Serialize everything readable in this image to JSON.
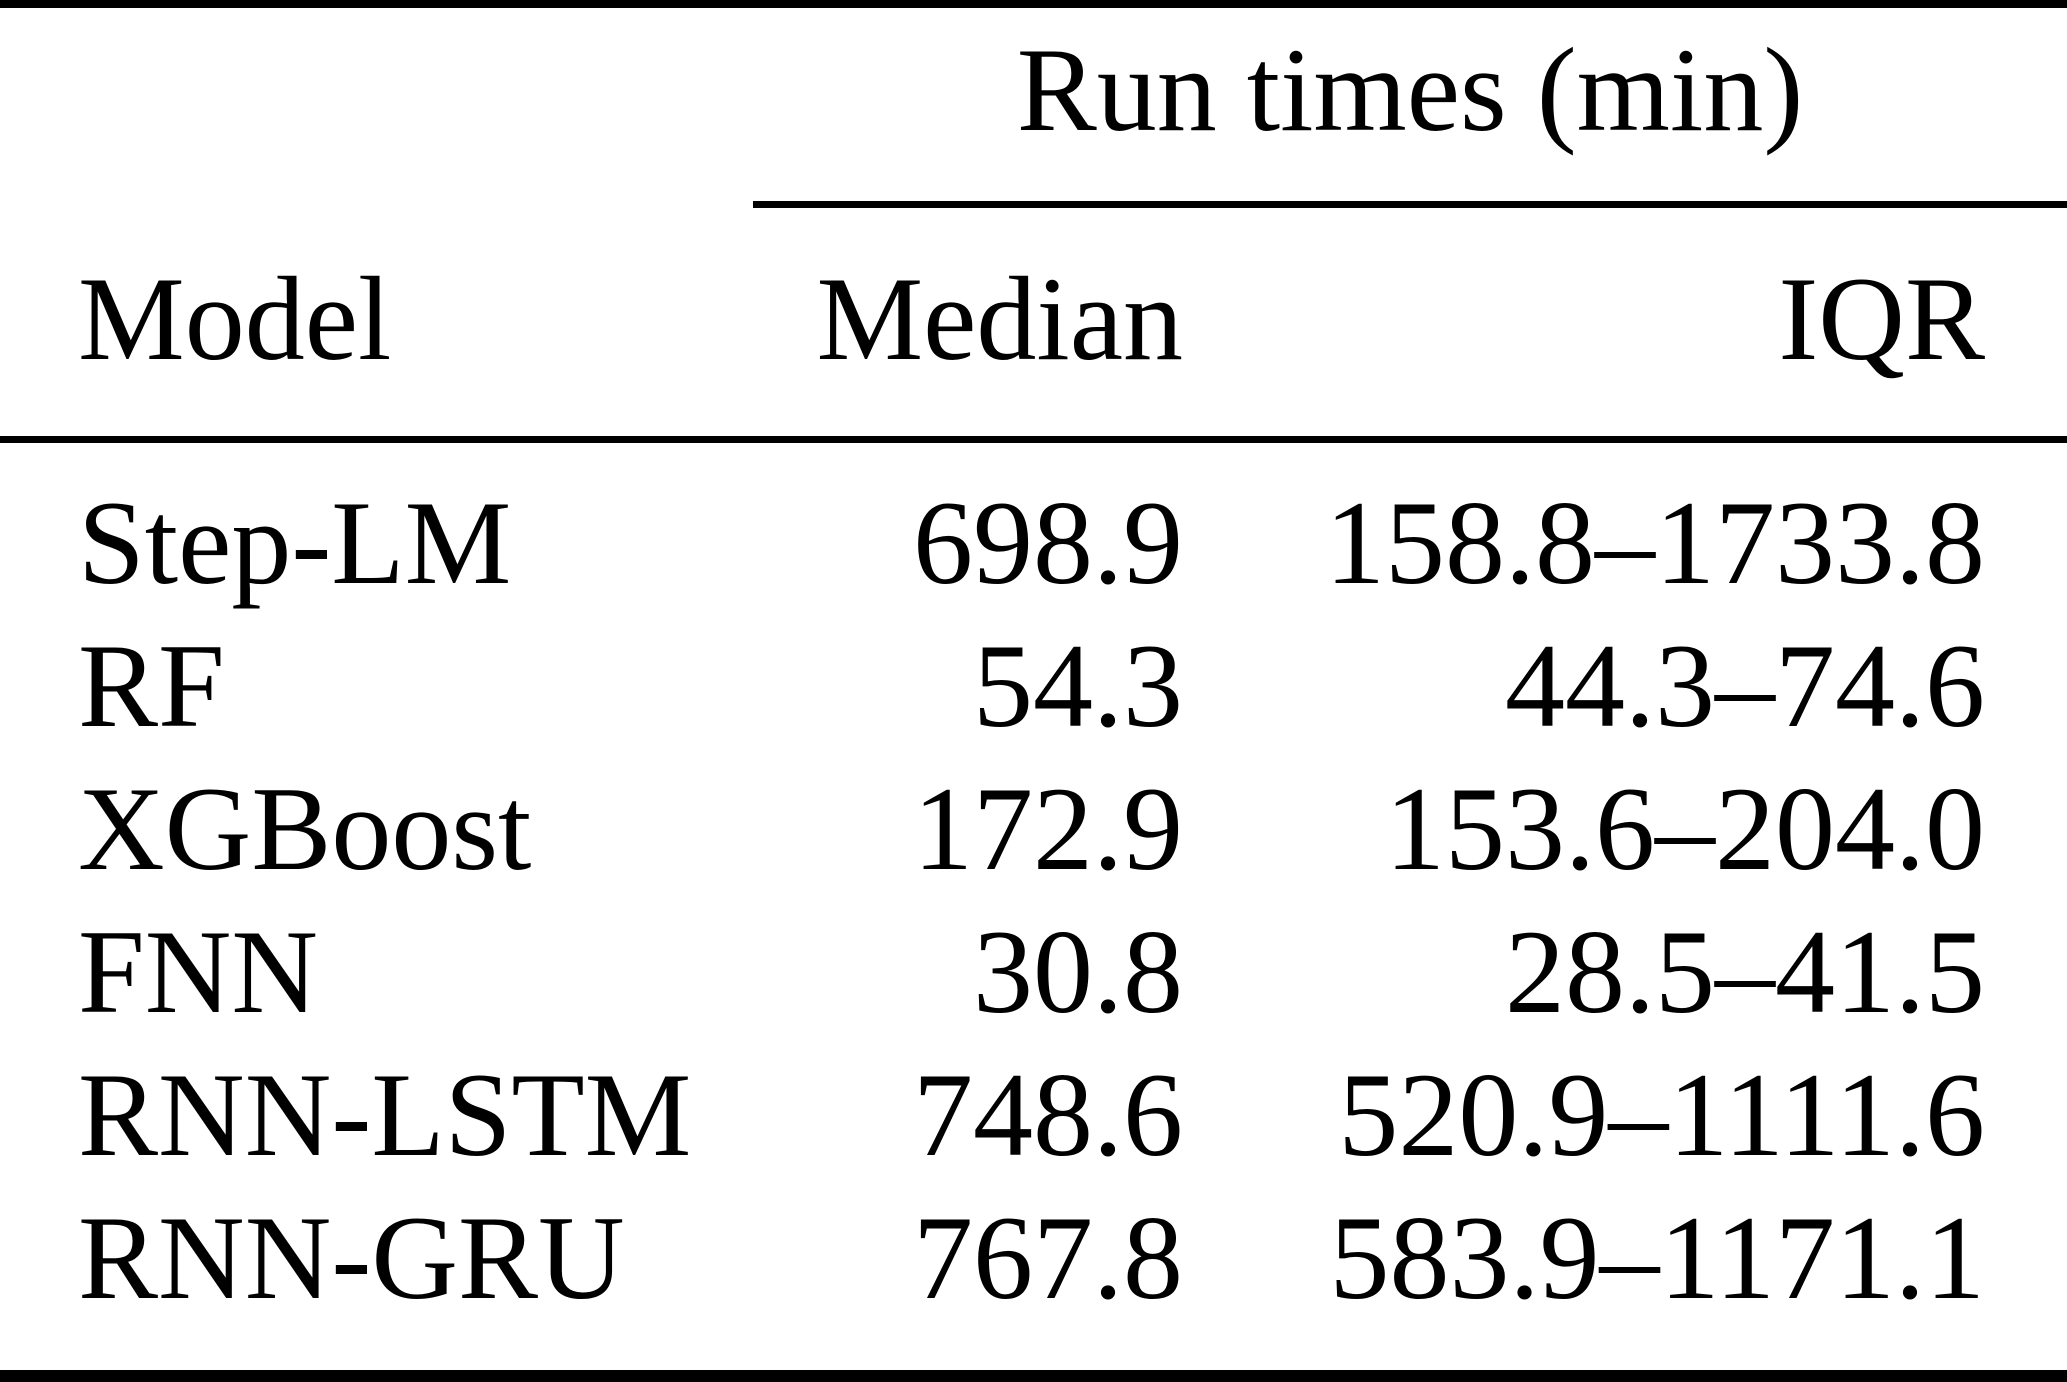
{
  "table": {
    "group_header": "Run times (min)",
    "columns": {
      "model": "Model",
      "median": "Median",
      "iqr": "IQR"
    },
    "rows": [
      {
        "model": "Step-LM",
        "median": "698.9",
        "iqr": "158.8–1733.8"
      },
      {
        "model": "RF",
        "median": "54.3",
        "iqr": "44.3–74.6"
      },
      {
        "model": "XGBoost",
        "median": "172.9",
        "iqr": "153.6–204.0"
      },
      {
        "model": "FNN",
        "median": "30.8",
        "iqr": "28.5–41.5"
      },
      {
        "model": "RNN-LSTM",
        "median": "748.6",
        "iqr": "520.9–1111.6"
      },
      {
        "model": "RNN-GRU",
        "median": "767.8",
        "iqr": "583.9–1171.1"
      }
    ],
    "colors": {
      "text": "#000000",
      "background": "#ffffff",
      "rule": "#000000"
    }
  }
}
